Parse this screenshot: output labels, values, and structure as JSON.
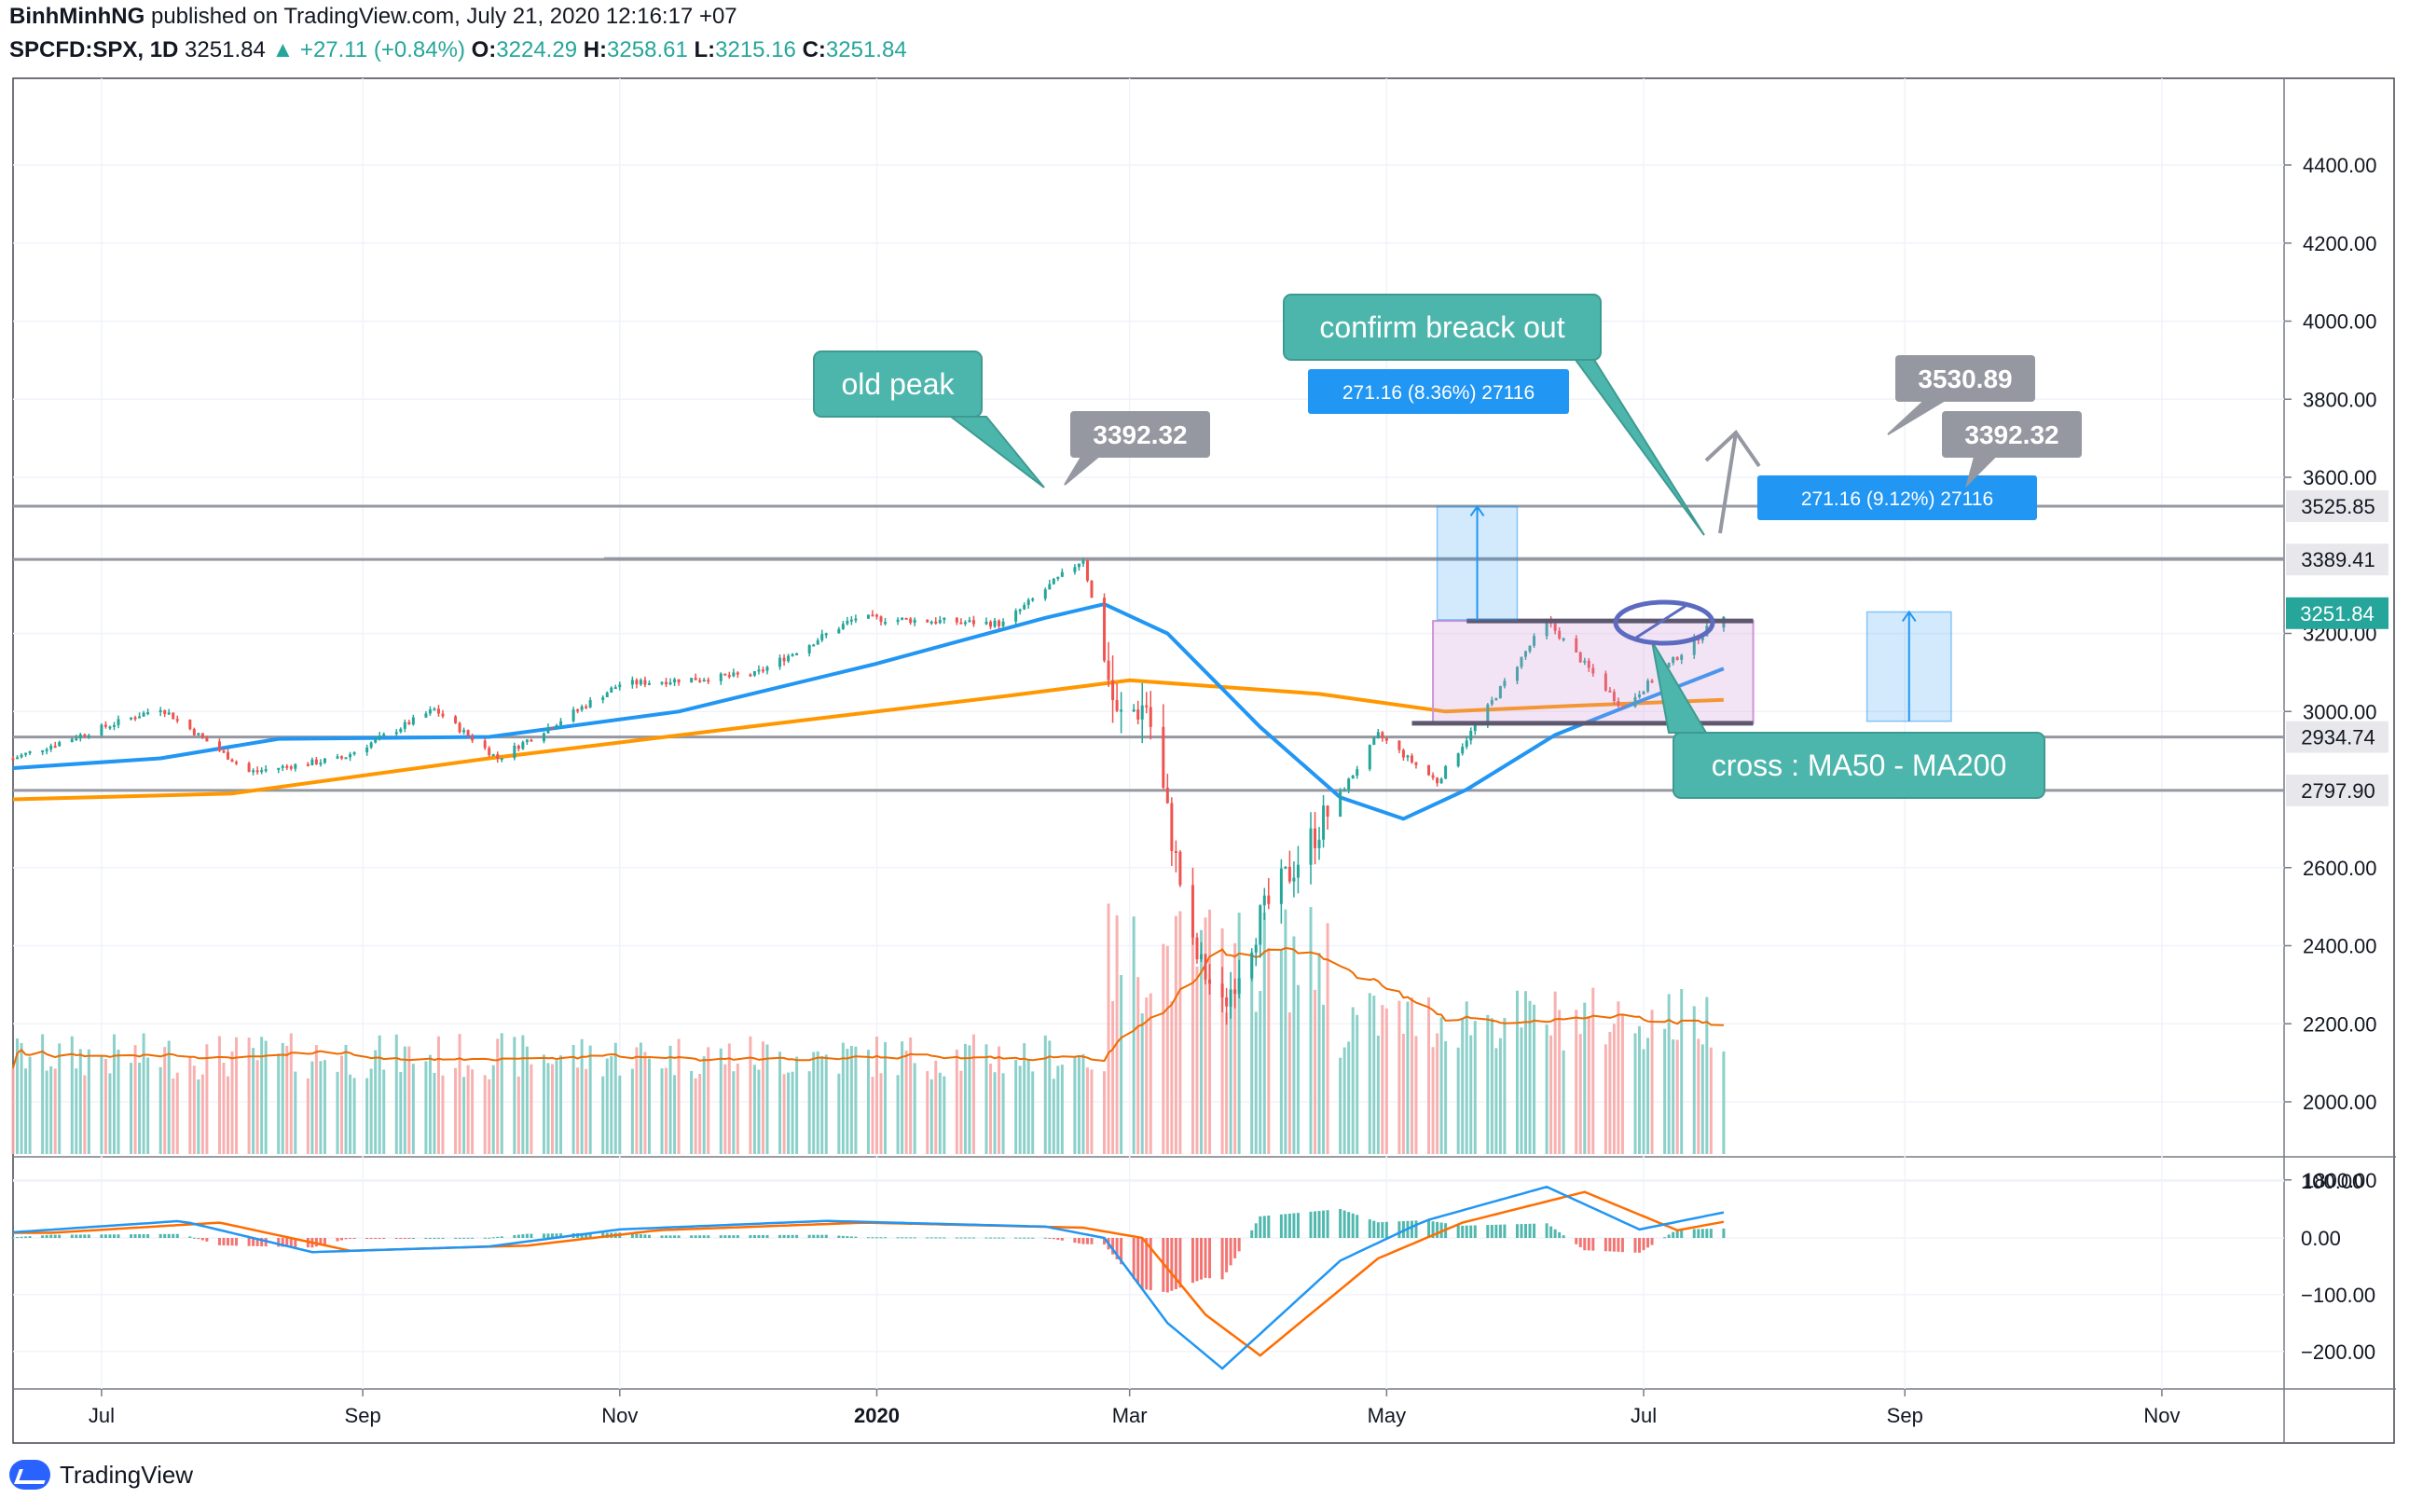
{
  "header": {
    "author": "BinhMinhNG",
    "published_text": " published on TradingView.com, July 21, 2020 12:16:17 +07",
    "symbol": "SPCFD:SPX, 1D",
    "last": "3251.84",
    "change": "+27.11 (+0.84%)",
    "open_label": "O:",
    "open": "3224.29",
    "high_label": "H:",
    "high": "3258.61",
    "low_label": "L:",
    "low": "3215.16",
    "close_label": "C:",
    "close": "3251.84"
  },
  "footer": {
    "brand": "TradingView"
  },
  "chart_data": {
    "type": "candlestick",
    "price_ticks": [
      "4400.00",
      "4200.00",
      "4000.00",
      "3800.00",
      "3600.00",
      "3200.00",
      "3000.00",
      "2600.00",
      "2400.00",
      "2200.00",
      "2000.00",
      "1800.00"
    ],
    "price_tick_values": [
      4400,
      4200,
      4000,
      3800,
      3600,
      3200,
      3000,
      2600,
      2400,
      2200,
      2000,
      1800
    ],
    "macd_ticks": [
      "100.00",
      "0.00",
      "−100.00",
      "−200.00"
    ],
    "macd_tick_values": [
      100,
      0,
      -100,
      -200
    ],
    "x_labels": [
      "Jul",
      "Sep",
      "Nov",
      "2020",
      "Mar",
      "May",
      "Jul",
      "Sep",
      "Nov"
    ],
    "x_label_months": [
      0,
      2,
      4,
      6,
      8,
      10,
      12,
      14,
      16
    ],
    "x_start": "2019-06-10",
    "x_end": "2020-11-30",
    "horizontal_levels": [
      {
        "value": 3525.85,
        "label": "3525.85"
      },
      {
        "value": 3389.41,
        "label": "3389.41"
      },
      {
        "value": 2934.74,
        "label": "2934.74"
      },
      {
        "value": 2797.9,
        "label": "2797.90"
      }
    ],
    "last_price": {
      "value": 3251.84,
      "label": "3251.84"
    },
    "price_anchors": [
      {
        "date": "2019-06-10",
        "price": 2880
      },
      {
        "date": "2019-07-15",
        "price": 3010
      },
      {
        "date": "2019-08-05",
        "price": 2845
      },
      {
        "date": "2019-08-27",
        "price": 2880
      },
      {
        "date": "2019-09-18",
        "price": 3005
      },
      {
        "date": "2019-10-03",
        "price": 2880
      },
      {
        "date": "2019-11-01",
        "price": 3070
      },
      {
        "date": "2019-12-03",
        "price": 3095
      },
      {
        "date": "2019-12-27",
        "price": 3240
      },
      {
        "date": "2020-01-31",
        "price": 3225
      },
      {
        "date": "2020-02-19",
        "price": 3392
      },
      {
        "date": "2020-02-27",
        "price": 2980
      },
      {
        "date": "2020-03-05",
        "price": 3020
      },
      {
        "date": "2020-03-16",
        "price": 2390
      },
      {
        "date": "2020-03-23",
        "price": 2240
      },
      {
        "date": "2020-04-01",
        "price": 2470
      },
      {
        "date": "2020-04-29",
        "price": 2940
      },
      {
        "date": "2020-05-13",
        "price": 2820
      },
      {
        "date": "2020-06-08",
        "price": 3232
      },
      {
        "date": "2020-06-26",
        "price": 3010
      },
      {
        "date": "2020-07-20",
        "price": 3251
      }
    ],
    "ma50": [
      {
        "date": "2019-06-10",
        "value": 2855
      },
      {
        "date": "2019-07-15",
        "value": 2880
      },
      {
        "date": "2019-08-12",
        "value": 2930
      },
      {
        "date": "2019-10-01",
        "value": 2935
      },
      {
        "date": "2019-11-15",
        "value": 3000
      },
      {
        "date": "2019-12-31",
        "value": 3120
      },
      {
        "date": "2020-02-10",
        "value": 3240
      },
      {
        "date": "2020-02-24",
        "value": 3275
      },
      {
        "date": "2020-03-10",
        "value": 3200
      },
      {
        "date": "2020-04-01",
        "value": 2960
      },
      {
        "date": "2020-04-20",
        "value": 2780
      },
      {
        "date": "2020-05-05",
        "value": 2725
      },
      {
        "date": "2020-05-20",
        "value": 2800
      },
      {
        "date": "2020-06-10",
        "value": 2940
      },
      {
        "date": "2020-07-01",
        "value": 3030
      },
      {
        "date": "2020-07-20",
        "value": 3110
      }
    ],
    "ma200": [
      {
        "date": "2019-06-10",
        "value": 2775
      },
      {
        "date": "2019-08-01",
        "value": 2790
      },
      {
        "date": "2019-10-01",
        "value": 2880
      },
      {
        "date": "2019-12-01",
        "value": 2960
      },
      {
        "date": "2020-02-01",
        "value": 3040
      },
      {
        "date": "2020-03-01",
        "value": 3080
      },
      {
        "date": "2020-04-15",
        "value": 3045
      },
      {
        "date": "2020-05-15",
        "value": 3000
      },
      {
        "date": "2020-06-15",
        "value": 3015
      },
      {
        "date": "2020-07-20",
        "value": 3030
      }
    ],
    "volume_series": "Volume",
    "macd_series": "MACD",
    "annotations": {
      "old_peak": "old peak",
      "confirm": "confirm breack out",
      "cross": "cross : MA50 - MA200",
      "peak_label": "3392.32",
      "target_label": "3530.89",
      "peak_label_right": "3392.32",
      "measure_1": "271.16 (8.36%) 27116",
      "measure_2": "271.16 (9.12%) 27116"
    },
    "colors": {
      "up": "#26a69a",
      "down": "#ef5350",
      "ma50": "#2196f3",
      "ma200": "#ff9800",
      "level": "#9598a1",
      "callout": "#4db6ac"
    }
  }
}
